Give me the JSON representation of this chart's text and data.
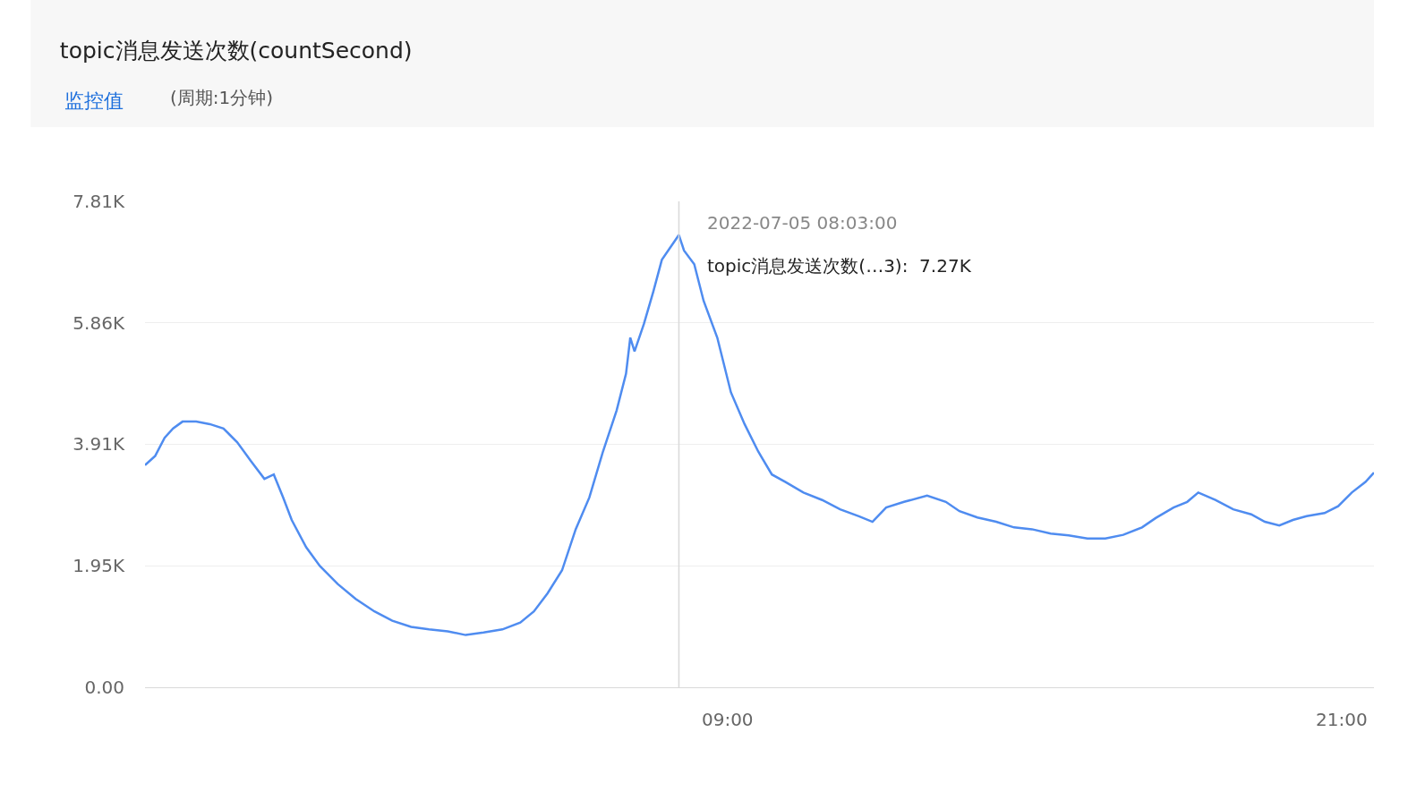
{
  "chart_data": {
    "type": "line",
    "title": "topic消息发送次数(countSecond)",
    "subtitle": "监控值",
    "annotations": [
      "(周期:1分钟)",
      {
        "text": "2022-07-05 08:03:00",
        "x": "2022-07-05T08:03",
        "y": 7270
      },
      {
        "text": "topic消息发送次数(…3):  7.27K",
        "x": "2022-07-05T08:03",
        "y": 7270
      }
    ],
    "x": [
      "2022-07-04T21:37",
      "2022-07-04T21:49",
      "2022-07-04T22:00",
      "2022-07-04T22:10",
      "2022-07-04T22:21",
      "2022-07-04T22:37",
      "2022-07-04T22:53",
      "2022-07-04T23:09",
      "2022-07-04T23:25",
      "2022-07-04T23:41",
      "2022-07-04T23:57",
      "2022-07-05T00:08",
      "2022-07-05T00:19",
      "2022-07-05T00:29",
      "2022-07-05T00:46",
      "2022-07-05T01:02",
      "2022-07-05T01:23",
      "2022-07-05T01:44",
      "2022-07-05T02:06",
      "2022-07-05T02:27",
      "2022-07-05T02:49",
      "2022-07-05T03:10",
      "2022-07-05T03:32",
      "2022-07-05T03:53",
      "2022-07-05T04:14",
      "2022-07-05T04:36",
      "2022-07-05T04:57",
      "2022-07-05T05:13",
      "2022-07-05T05:29",
      "2022-07-05T05:46",
      "2022-07-05T06:02",
      "2022-07-05T06:18",
      "2022-07-05T06:34",
      "2022-07-05T06:50",
      "2022-07-05T07:01",
      "2022-07-05T07:06",
      "2022-07-05T07:11",
      "2022-07-05T07:22",
      "2022-07-05T07:33",
      "2022-07-05T07:43",
      "2022-07-05T07:54",
      "2022-07-05T08:03",
      "2022-07-05T08:09",
      "2022-07-05T08:21",
      "2022-07-05T08:32",
      "2022-07-05T08:48",
      "2022-07-05T09:04",
      "2022-07-05T09:20",
      "2022-07-05T09:36",
      "2022-07-05T09:52",
      "2022-07-05T10:08",
      "2022-07-05T10:29",
      "2022-07-05T10:51",
      "2022-07-05T11:12",
      "2022-07-05T11:34",
      "2022-07-05T11:50",
      "2022-07-05T12:06",
      "2022-07-05T12:27",
      "2022-07-05T12:54",
      "2022-07-05T13:16",
      "2022-07-05T13:32",
      "2022-07-05T13:53",
      "2022-07-05T14:15",
      "2022-07-05T14:36",
      "2022-07-05T14:57",
      "2022-07-05T15:19",
      "2022-07-05T15:40",
      "2022-07-05T16:02",
      "2022-07-05T16:23",
      "2022-07-05T16:44",
      "2022-07-05T17:06",
      "2022-07-05T17:22",
      "2022-07-05T17:43",
      "2022-07-05T17:59",
      "2022-07-05T18:12",
      "2022-07-05T18:32",
      "2022-07-05T18:53",
      "2022-07-05T19:14",
      "2022-07-05T19:30",
      "2022-07-05T19:47",
      "2022-07-05T20:03",
      "2022-07-05T20:19",
      "2022-07-05T20:40",
      "2022-07-05T20:56",
      "2022-07-05T21:12",
      "2022-07-05T21:28",
      "2022-07-05T21:38"
    ],
    "series": [
      {
        "color": "#4f8cf0",
        "values": [
          3570,
          3720,
          4010,
          4160,
          4270,
          4270,
          4230,
          4160,
          3940,
          3640,
          3350,
          3420,
          3050,
          2690,
          2250,
          1950,
          1660,
          1420,
          1220,
          1070,
          970,
          930,
          900,
          840,
          880,
          930,
          1040,
          1220,
          1510,
          1880,
          2540,
          3050,
          3790,
          4450,
          5040,
          5620,
          5400,
          5840,
          6360,
          6870,
          7090,
          7270,
          7020,
          6800,
          6210,
          5620,
          4740,
          4230,
          3790,
          3420,
          3300,
          3130,
          3010,
          2860,
          2750,
          2660,
          2890,
          2980,
          3080,
          2980,
          2830,
          2730,
          2660,
          2570,
          2540,
          2470,
          2440,
          2390,
          2390,
          2450,
          2570,
          2720,
          2890,
          2980,
          3130,
          3010,
          2860,
          2780,
          2660,
          2600,
          2690,
          2750,
          2800,
          2910,
          3130,
          3300,
          3450
        ]
      }
    ],
    "xlim": [
      "2022-07-04T21:37",
      "2022-07-05T21:38"
    ],
    "xticks": [
      {
        "value": "2022-07-05T09:00",
        "label": "09:00"
      },
      {
        "value": "2022-07-05T21:00",
        "label": "21:00"
      }
    ],
    "ylim": [
      0,
      7810
    ],
    "yticks": [
      {
        "value": 0,
        "label": "0.00"
      },
      {
        "value": 1950,
        "label": "1.95K"
      },
      {
        "value": 3910,
        "label": "3.91K"
      },
      {
        "value": 5860,
        "label": "5.86K"
      },
      {
        "value": 7810,
        "label": "7.81K"
      }
    ],
    "ref_lines": [
      {
        "axis": "x",
        "value": "2022-07-05T08:03",
        "color": "#d9d9d9"
      }
    ],
    "grid": "y",
    "marker": "none",
    "line_style": "solid"
  }
}
